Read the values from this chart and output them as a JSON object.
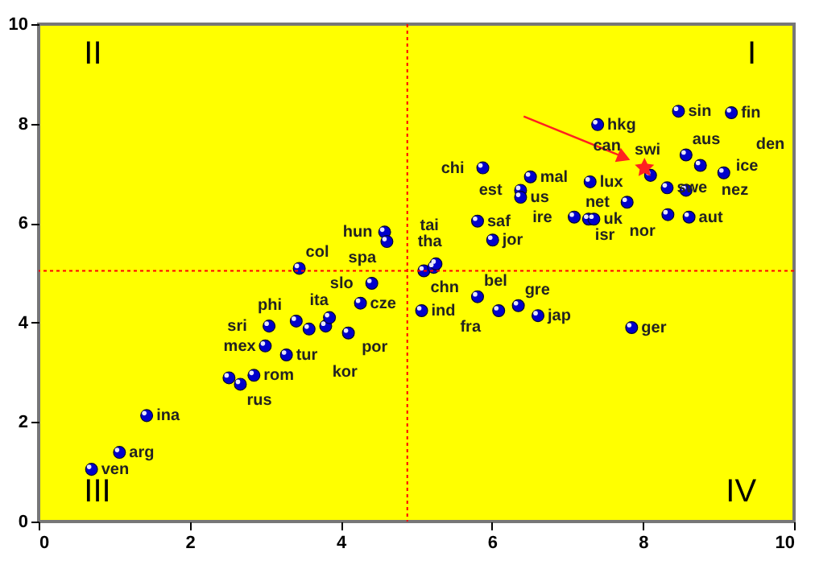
{
  "chart_data": {
    "type": "scatter",
    "xlim": [
      0,
      10
    ],
    "ylim": [
      0,
      10
    ],
    "xticks": [
      0,
      2,
      4,
      6,
      8,
      10
    ],
    "yticks": [
      0,
      2,
      4,
      6,
      8,
      10
    ],
    "grid": false,
    "marker": "circle",
    "series": [
      {
        "color": "#0000cc",
        "x": [
          0.7,
          1.07,
          1.43,
          2.85,
          2.67,
          2.52,
          3.0,
          3.28,
          3.05,
          3.41,
          3.58,
          3.8,
          3.85,
          4.1,
          4.26,
          4.41,
          3.45,
          4.58,
          4.61,
          5.1,
          5.23,
          5.26,
          5.07,
          5.81,
          6.35,
          6.09,
          6.61,
          7.85,
          6.01,
          5.81,
          6.38,
          6.38,
          6.51,
          5.88,
          7.4,
          7.3,
          7.09,
          7.28,
          7.35,
          7.79,
          8.1,
          8.33,
          8.61,
          8.32,
          8.57,
          8.57,
          8.76,
          9.07,
          8.47,
          9.17
        ],
        "values": [
          1.05,
          1.39,
          2.13,
          2.94,
          2.76,
          2.89,
          3.53,
          3.35,
          3.93,
          4.03,
          3.87,
          3.93,
          4.1,
          3.79,
          4.39,
          4.79,
          5.09,
          5.82,
          5.63,
          5.04,
          5.11,
          5.18,
          4.24,
          4.52,
          4.34,
          4.24,
          4.14,
          3.9,
          5.66,
          6.04,
          6.66,
          6.52,
          6.93,
          7.11,
          7.98,
          6.83,
          6.12,
          6.08,
          6.08,
          6.42,
          6.96,
          6.17,
          6.12,
          6.71,
          6.66,
          7.37,
          7.16,
          7.01,
          8.25,
          8.22
        ]
      },
      {
        "color": "#ff2020",
        "marker": "star",
        "x": [
          8.02
        ],
        "values": [
          7.11
        ]
      }
    ],
    "ref_lines": [
      {
        "axis": "x",
        "value": 4.88,
        "color": "#ff0000",
        "line_style": "dotted"
      },
      {
        "axis": "y",
        "value": 5.04,
        "color": "#ff0000",
        "line_style": "dotted"
      }
    ],
    "annotations": [
      "II",
      "I",
      "III",
      "IV",
      {
        "text": "ven",
        "x": 0.7,
        "y": 1.05
      },
      {
        "text": "arg",
        "x": 1.07,
        "y": 1.39
      },
      {
        "text": "ina",
        "x": 1.43,
        "y": 2.13
      },
      {
        "text": "rom",
        "x": 2.85,
        "y": 2.94
      },
      {
        "text": "rus",
        "x": 2.67,
        "y": 2.76
      },
      {
        "text": "mex",
        "x": 3.0,
        "y": 3.53
      },
      {
        "text": "tur",
        "x": 3.28,
        "y": 3.35
      },
      {
        "text": "sri",
        "x": 3.05,
        "y": 3.93
      },
      {
        "text": "phi",
        "x": 3.41,
        "y": 4.03
      },
      {
        "text": "ita",
        "x": 3.8,
        "y": 3.93
      },
      {
        "text": "por",
        "x": 3.85,
        "y": 4.1
      },
      {
        "text": "kor",
        "x": 4.1,
        "y": 3.79
      },
      {
        "text": "cze",
        "x": 4.26,
        "y": 4.39
      },
      {
        "text": "slo",
        "x": 4.41,
        "y": 4.79
      },
      {
        "text": "col",
        "x": 3.45,
        "y": 5.09
      },
      {
        "text": "hun",
        "x": 4.58,
        "y": 5.82
      },
      {
        "text": "spa",
        "x": 4.61,
        "y": 5.63
      },
      {
        "text": "chn",
        "x": 5.1,
        "y": 5.04
      },
      {
        "text": "tha",
        "x": 5.23,
        "y": 5.11
      },
      {
        "text": "tai",
        "x": 5.26,
        "y": 5.18
      },
      {
        "text": "ind",
        "x": 5.07,
        "y": 4.24
      },
      {
        "text": "bel",
        "x": 5.81,
        "y": 4.52
      },
      {
        "text": "gre",
        "x": 6.35,
        "y": 4.34
      },
      {
        "text": "fra",
        "x": 6.09,
        "y": 4.24
      },
      {
        "text": "jap",
        "x": 6.61,
        "y": 4.14
      },
      {
        "text": "ger",
        "x": 7.85,
        "y": 3.9
      },
      {
        "text": "jor",
        "x": 6.01,
        "y": 5.66
      },
      {
        "text": "saf",
        "x": 5.81,
        "y": 6.04
      },
      {
        "text": "est",
        "x": 6.38,
        "y": 6.66
      },
      {
        "text": "us",
        "x": 6.38,
        "y": 6.52
      },
      {
        "text": "mal",
        "x": 6.51,
        "y": 6.93
      },
      {
        "text": "chi",
        "x": 5.88,
        "y": 7.11
      },
      {
        "text": "hkg",
        "x": 7.4,
        "y": 7.98
      },
      {
        "text": "lux",
        "x": 7.3,
        "y": 6.83
      },
      {
        "text": "ire",
        "x": 7.09,
        "y": 6.12
      },
      {
        "text": "isr",
        "x": 7.28,
        "y": 6.08
      },
      {
        "text": "uk",
        "x": 7.35,
        "y": 6.08
      },
      {
        "text": "net",
        "x": 7.79,
        "y": 6.42
      },
      {
        "text": "swi",
        "x": 8.1,
        "y": 6.96
      },
      {
        "text": "can",
        "x": 8.02,
        "y": 7.11
      },
      {
        "text": "nor",
        "x": 8.33,
        "y": 6.17
      },
      {
        "text": "aut",
        "x": 8.61,
        "y": 6.12
      },
      {
        "text": "swe",
        "x": 8.32,
        "y": 6.71
      },
      {
        "text": "nez",
        "x": 8.57,
        "y": 6.66
      },
      {
        "text": "aus",
        "x": 8.57,
        "y": 7.37
      },
      {
        "text": "ice",
        "x": 8.76,
        "y": 7.16
      },
      {
        "text": "den",
        "x": 9.07,
        "y": 7.01
      },
      {
        "text": "sin",
        "x": 8.47,
        "y": 8.25
      },
      {
        "text": "fin",
        "x": 9.17,
        "y": 8.22
      }
    ]
  }
}
